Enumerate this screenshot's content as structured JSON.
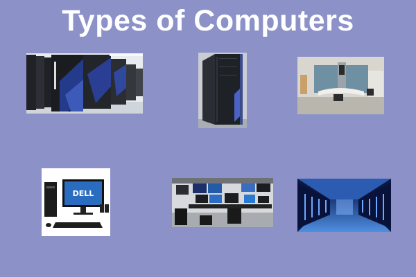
{
  "title": "Types of Computers",
  "images": [
    {
      "id": "pic1",
      "subject": "supercomputer"
    },
    {
      "id": "pic2",
      "subject": "mainframe"
    },
    {
      "id": "pic3",
      "subject": "vintage computer"
    },
    {
      "id": "pic4",
      "subject": "desktop"
    },
    {
      "id": "pic5",
      "subject": "workstation"
    },
    {
      "id": "pic6",
      "subject": "server room"
    }
  ],
  "logos": {
    "dell": "DELL"
  }
}
